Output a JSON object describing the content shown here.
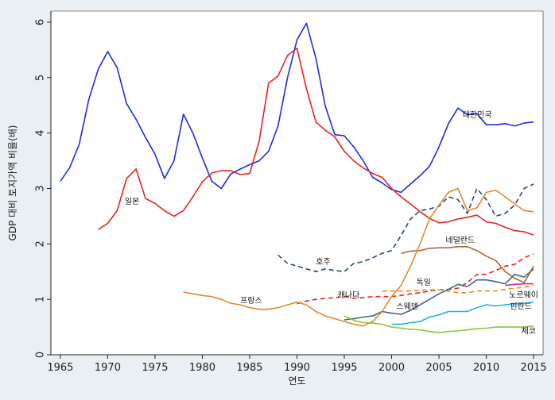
{
  "chart_data": {
    "type": "line",
    "title": "",
    "xlabel": "연도",
    "ylabel": "GDP 대비 토지가액 비율(배)",
    "xlim": [
      1964,
      2016
    ],
    "ylim": [
      0,
      6.2
    ],
    "xticks": [
      1965,
      1970,
      1975,
      1980,
      1985,
      1990,
      1995,
      2000,
      2005,
      2010,
      2015
    ],
    "yticks": [
      0,
      1,
      2,
      3,
      4,
      5,
      6
    ],
    "grid": false,
    "colors": {
      "plot_bg": "#ffffff",
      "page_bg": "#e9eff2",
      "axis": "#222222"
    },
    "series": [
      {
        "name": "대한민국",
        "color": "#1a2fe0",
        "dash": "solid",
        "x": [
          1965,
          1966,
          1967,
          1968,
          1969,
          1970,
          1971,
          1972,
          1973,
          1974,
          1975,
          1976,
          1977,
          1978,
          1979,
          1980,
          1981,
          1982,
          1983,
          1984,
          1985,
          1986,
          1987,
          1988,
          1989,
          1990,
          1991,
          1992,
          1993,
          1994,
          1995,
          1996,
          1997,
          1998,
          1999,
          2000,
          2001,
          2002,
          2003,
          2004,
          2005,
          2006,
          2007,
          2008,
          2009,
          2010,
          2011,
          2012,
          2013,
          2014,
          2015
        ],
        "y": [
          3.13,
          3.38,
          3.8,
          4.6,
          5.15,
          5.47,
          5.18,
          4.53,
          4.25,
          3.92,
          3.62,
          3.18,
          3.5,
          4.34,
          4.0,
          3.55,
          3.13,
          3.0,
          3.26,
          3.35,
          3.43,
          3.5,
          3.67,
          4.13,
          5.0,
          5.68,
          5.98,
          5.35,
          4.48,
          3.97,
          3.95,
          3.75,
          3.5,
          3.2,
          3.1,
          2.98,
          2.93,
          3.08,
          3.23,
          3.4,
          3.75,
          4.17,
          4.45,
          4.33,
          4.35,
          4.15,
          4.15,
          4.17,
          4.13,
          4.18,
          4.2
        ]
      },
      {
        "name": "일본",
        "color": "#e8221e",
        "dash": "solid",
        "x": [
          1969,
          1970,
          1971,
          1972,
          1973,
          1974,
          1975,
          1976,
          1977,
          1978,
          1979,
          1980,
          1981,
          1982,
          1983,
          1984,
          1985,
          1986,
          1987,
          1988,
          1989,
          1990,
          1991,
          1992,
          1993,
          1994,
          1995,
          1996,
          1997,
          1998,
          1999,
          2000,
          2001,
          2002,
          2003,
          2004,
          2005,
          2006,
          2007,
          2008,
          2009,
          2010,
          2011,
          2012,
          2013,
          2014,
          2015
        ],
        "y": [
          2.26,
          2.37,
          2.6,
          3.18,
          3.35,
          2.82,
          2.73,
          2.6,
          2.5,
          2.6,
          2.85,
          3.12,
          3.28,
          3.32,
          3.32,
          3.25,
          3.27,
          3.85,
          4.9,
          5.03,
          5.4,
          5.53,
          4.8,
          4.2,
          4.05,
          3.93,
          3.67,
          3.5,
          3.37,
          3.27,
          3.2,
          3.0,
          2.85,
          2.72,
          2.58,
          2.46,
          2.38,
          2.4,
          2.45,
          2.48,
          2.52,
          2.4,
          2.37,
          2.3,
          2.24,
          2.22,
          2.16
        ]
      },
      {
        "name": "호주",
        "color": "#2a4a6e",
        "dash": "dashed",
        "x": [
          1988,
          1989,
          1990,
          1991,
          1992,
          1993,
          1994,
          1995,
          1996,
          1997,
          1998,
          1999,
          2000,
          2001,
          2002,
          2003,
          2004,
          2005,
          2006,
          2007,
          2008,
          2009,
          2010,
          2011,
          2012,
          2013,
          2014,
          2015
        ],
        "y": [
          1.8,
          1.65,
          1.6,
          1.55,
          1.5,
          1.55,
          1.52,
          1.5,
          1.65,
          1.68,
          1.75,
          1.83,
          1.88,
          2.15,
          2.45,
          2.6,
          2.63,
          2.68,
          2.85,
          2.8,
          2.55,
          3.0,
          2.8,
          2.5,
          2.55,
          2.7,
          3.0,
          3.08
        ]
      },
      {
        "name": "네덜란드",
        "color": "#b5633f",
        "dash": "solid",
        "x": [
          2001,
          2002,
          2003,
          2004,
          2005,
          2006,
          2007,
          2008,
          2009,
          2010,
          2011,
          2012,
          2013,
          2014,
          2015
        ],
        "y": [
          1.83,
          1.87,
          1.88,
          1.92,
          1.93,
          1.93,
          1.95,
          1.95,
          1.88,
          1.78,
          1.7,
          1.5,
          1.38,
          1.3,
          1.6
        ]
      },
      {
        "name": "캐나다",
        "color": "#e8221e",
        "dash": "dashed",
        "x": [
          1990,
          1991,
          1992,
          1993,
          1994,
          1995,
          1996,
          1997,
          1998,
          1999,
          2000,
          2001,
          2002,
          2003,
          2004,
          2005,
          2006,
          2007,
          2008,
          2009,
          2010,
          2011,
          2012,
          2013,
          2014,
          2015
        ],
        "y": [
          0.92,
          0.97,
          1.0,
          1.02,
          1.03,
          1.05,
          1.02,
          1.03,
          1.05,
          1.05,
          1.05,
          1.07,
          1.1,
          1.12,
          1.15,
          1.17,
          1.18,
          1.2,
          1.3,
          1.45,
          1.45,
          1.52,
          1.6,
          1.63,
          1.75,
          1.82
        ]
      },
      {
        "name": "독일",
        "color": "#e8901c",
        "dash": "dashed",
        "x": [
          1999,
          2000,
          2001,
          2002,
          2003,
          2004,
          2005,
          2006,
          2007,
          2008,
          2009,
          2010,
          2011,
          2012,
          2013,
          2014,
          2015
        ],
        "y": [
          1.15,
          1.15,
          1.15,
          1.15,
          1.17,
          1.17,
          1.17,
          1.15,
          1.12,
          1.12,
          1.15,
          1.15,
          1.15,
          1.18,
          1.2,
          1.22,
          1.25
        ]
      },
      {
        "name": "노르웨이",
        "color": "#e02680",
        "dash": "solid",
        "x": [
          2012,
          2013,
          2014,
          2015
        ],
        "y": [
          1.25,
          1.27,
          1.28,
          1.28
        ]
      },
      {
        "name": "스웨덴",
        "color": "#3d6b78",
        "dash": "solid",
        "x": [
          1995,
          1996,
          1997,
          1998,
          1999,
          2000,
          2001,
          2002,
          2003,
          2004,
          2005,
          2006,
          2007,
          2008,
          2009,
          2010,
          2011,
          2012,
          2013,
          2014,
          2015
        ],
        "y": [
          0.63,
          0.65,
          0.68,
          0.7,
          0.78,
          0.75,
          0.73,
          0.8,
          0.9,
          1.0,
          1.1,
          1.18,
          1.27,
          1.23,
          1.35,
          1.35,
          1.32,
          1.28,
          1.45,
          1.4,
          1.55
        ]
      },
      {
        "name": "프랑스",
        "color": "#e08a2e",
        "dash": "solid",
        "x": [
          1978,
          1979,
          1980,
          1981,
          1982,
          1983,
          1984,
          1985,
          1986,
          1987,
          1988,
          1989,
          1990,
          1991,
          1992,
          1993,
          1994,
          1995,
          1996,
          1997,
          1998,
          1999,
          2000,
          2001,
          2002,
          2003,
          2004,
          2005,
          2006,
          2007,
          2008,
          2009,
          2010,
          2011,
          2012,
          2013,
          2014,
          2015
        ],
        "y": [
          1.13,
          1.1,
          1.07,
          1.05,
          1.0,
          0.93,
          0.9,
          0.85,
          0.82,
          0.82,
          0.85,
          0.9,
          0.95,
          0.9,
          0.78,
          0.7,
          0.65,
          0.6,
          0.55,
          0.52,
          0.6,
          0.78,
          1.05,
          1.25,
          1.6,
          2.0,
          2.45,
          2.7,
          2.93,
          3.0,
          2.6,
          2.65,
          2.93,
          2.97,
          2.85,
          2.72,
          2.6,
          2.58
        ]
      },
      {
        "name": "핀란드",
        "color": "#1fb6d6",
        "dash": "solid",
        "x": [
          2000,
          2001,
          2002,
          2003,
          2004,
          2005,
          2006,
          2007,
          2008,
          2009,
          2010,
          2011,
          2012,
          2013,
          2014,
          2015
        ],
        "y": [
          0.55,
          0.55,
          0.58,
          0.6,
          0.68,
          0.72,
          0.78,
          0.78,
          0.78,
          0.85,
          0.9,
          0.88,
          0.9,
          0.92,
          0.93,
          0.95
        ]
      },
      {
        "name": "체코",
        "color": "#8cc43a",
        "dash": "solid",
        "x": [
          1995,
          1996,
          1997,
          1998,
          1999,
          2000,
          2001,
          2002,
          2003,
          2004,
          2005,
          2006,
          2007,
          2008,
          2009,
          2010,
          2011,
          2012,
          2013,
          2014,
          2015
        ],
        "y": [
          0.7,
          0.62,
          0.58,
          0.57,
          0.55,
          0.5,
          0.48,
          0.46,
          0.45,
          0.42,
          0.4,
          0.42,
          0.43,
          0.45,
          0.47,
          0.48,
          0.5,
          0.5,
          0.5,
          0.5,
          0.52
        ]
      }
    ],
    "annotations": [
      {
        "text": "대한민국",
        "x": 2007.5,
        "y": 4.28
      },
      {
        "text": "일본",
        "x": 1971.8,
        "y": 2.72
      },
      {
        "text": "네덜란드",
        "x": 2005.7,
        "y": 2.02
      },
      {
        "text": "호주",
        "x": 1992.0,
        "y": 1.63
      },
      {
        "text": "독일",
        "x": 2002.6,
        "y": 1.26
      },
      {
        "text": "캐나다",
        "x": 1994.3,
        "y": 1.03
      },
      {
        "text": "노르웨이",
        "x": 2012.4,
        "y": 1.03
      },
      {
        "text": "스웨덴",
        "x": 2000.5,
        "y": 0.82
      },
      {
        "text": "프랑스",
        "x": 1984.0,
        "y": 0.93
      },
      {
        "text": "핀란드",
        "x": 2012.5,
        "y": 0.82
      },
      {
        "text": "체코",
        "x": 2013.7,
        "y": 0.38
      }
    ]
  }
}
